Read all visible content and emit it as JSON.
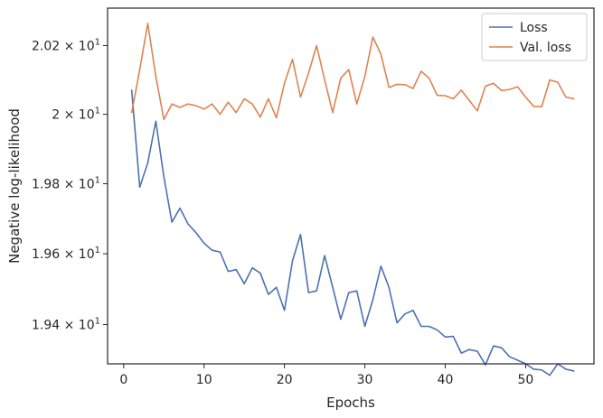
{
  "chart_data": {
    "type": "line",
    "title": "",
    "xlabel": "Epochs",
    "ylabel": "Negative log-likelihood",
    "xlim": [
      -2,
      58.5
    ],
    "ylim": [
      19.29,
      20.31
    ],
    "y_scale": "log",
    "x_ticks": [
      0,
      10,
      20,
      30,
      40,
      50
    ],
    "x_tick_labels": [
      "0",
      "10",
      "20",
      "30",
      "40",
      "50"
    ],
    "y_ticks": [
      19.4,
      19.6,
      19.8,
      20.0,
      20.2
    ],
    "y_tick_labels": [
      {
        "mantissa": "1.94",
        "times": "×",
        "base": "10",
        "exp": "1"
      },
      {
        "mantissa": "1.96",
        "times": "×",
        "base": "10",
        "exp": "1"
      },
      {
        "mantissa": "1.98",
        "times": "×",
        "base": "10",
        "exp": "1"
      },
      {
        "mantissa": "2",
        "times": "×",
        "base": "10",
        "exp": "1"
      },
      {
        "mantissa": "2.02",
        "times": "×",
        "base": "10",
        "exp": "1"
      }
    ],
    "grid": false,
    "legend_position": "top-right",
    "x": [
      1,
      2,
      3,
      4,
      5,
      6,
      7,
      8,
      9,
      10,
      11,
      12,
      13,
      14,
      15,
      16,
      17,
      18,
      19,
      20,
      21,
      22,
      23,
      24,
      25,
      26,
      27,
      28,
      29,
      30,
      31,
      32,
      33,
      34,
      35,
      36,
      37,
      38,
      39,
      40,
      41,
      42,
      43,
      44,
      45,
      46,
      47,
      48,
      49,
      50,
      51,
      52,
      53,
      54,
      55,
      56
    ],
    "series": [
      {
        "name": "Loss",
        "color": "#4c72b0",
        "values": [
          20.07,
          19.79,
          19.86,
          19.98,
          19.82,
          19.69,
          19.73,
          19.685,
          19.66,
          19.63,
          19.61,
          19.605,
          19.55,
          19.555,
          19.515,
          19.56,
          19.545,
          19.485,
          19.505,
          19.44,
          19.58,
          19.655,
          19.49,
          19.495,
          19.595,
          19.505,
          19.415,
          19.49,
          19.495,
          19.395,
          19.47,
          19.565,
          19.505,
          19.405,
          19.43,
          19.44,
          19.395,
          19.395,
          19.385,
          19.365,
          19.367,
          19.32,
          19.33,
          19.325,
          19.287,
          19.34,
          19.335,
          19.31,
          19.3,
          19.29,
          19.275,
          19.273,
          19.258,
          19.29,
          19.275,
          19.27
        ]
      },
      {
        "name": "Val. loss",
        "color": "#dd8452",
        "values": [
          20.005,
          20.13,
          20.265,
          20.11,
          19.985,
          20.03,
          20.02,
          20.03,
          20.025,
          20.015,
          20.03,
          20.0,
          20.035,
          20.005,
          20.045,
          20.03,
          19.992,
          20.045,
          19.99,
          20.09,
          20.16,
          20.05,
          20.12,
          20.2,
          20.1,
          20.005,
          20.105,
          20.13,
          20.03,
          20.11,
          20.225,
          20.175,
          20.078,
          20.087,
          20.086,
          20.075,
          20.125,
          20.105,
          20.055,
          20.054,
          20.045,
          20.07,
          20.04,
          20.01,
          20.082,
          20.09,
          20.069,
          20.072,
          20.08,
          20.05,
          20.023,
          20.022,
          20.1,
          20.093,
          20.05,
          20.045
        ]
      }
    ]
  }
}
